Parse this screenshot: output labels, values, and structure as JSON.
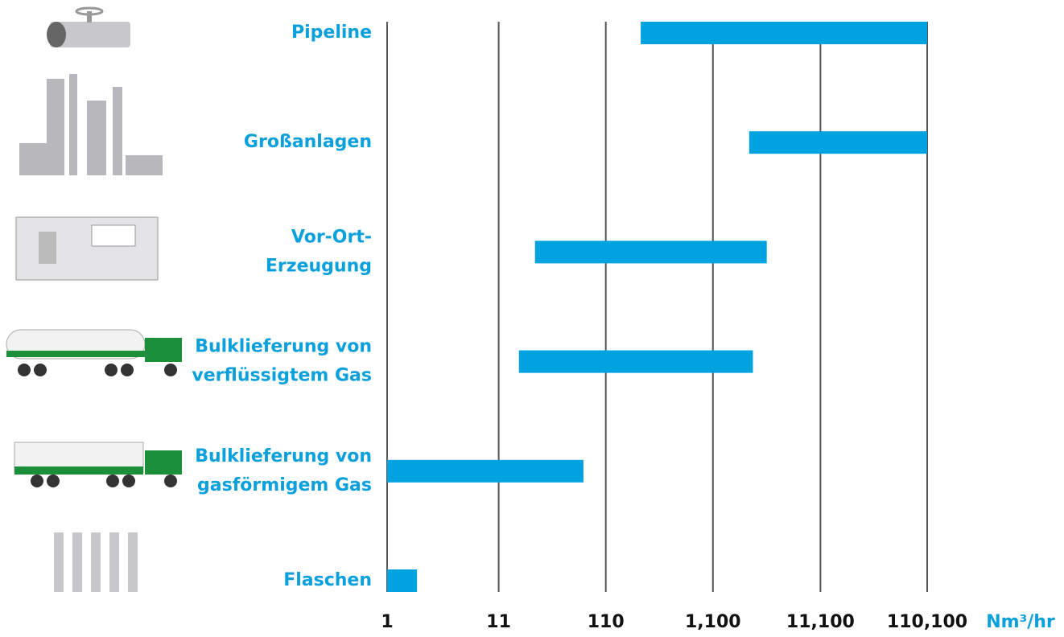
{
  "chart_data": {
    "type": "range-bar",
    "categories": [
      [
        "Pipeline"
      ],
      [
        "Großanlagen"
      ],
      [
        "Vor-Ort-",
        "Erzeugung"
      ],
      [
        "Bulklieferung von",
        "verflüssigtem Gas"
      ],
      [
        "Bulklieferung von",
        "gasförmigem Gas"
      ],
      [
        "Flaschen"
      ]
    ],
    "low": [
      233,
      2400,
      24,
      17,
      1,
      1
    ],
    "high": [
      110100,
      110100,
      3500,
      2600,
      68,
      1.9
    ],
    "color": "#00a3e0",
    "label_color": "#0aa0dc",
    "log_x": true,
    "xlim": [
      1,
      110100
    ],
    "xticks": [
      1,
      11,
      110,
      {
        "value": 1100,
        "label": "1,100"
      },
      {
        "value": 11100,
        "label": "11,100"
      },
      {
        "value": 110100,
        "label": "110,100"
      }
    ],
    "xlabel": "Nm³/hr",
    "grid": true
  }
}
